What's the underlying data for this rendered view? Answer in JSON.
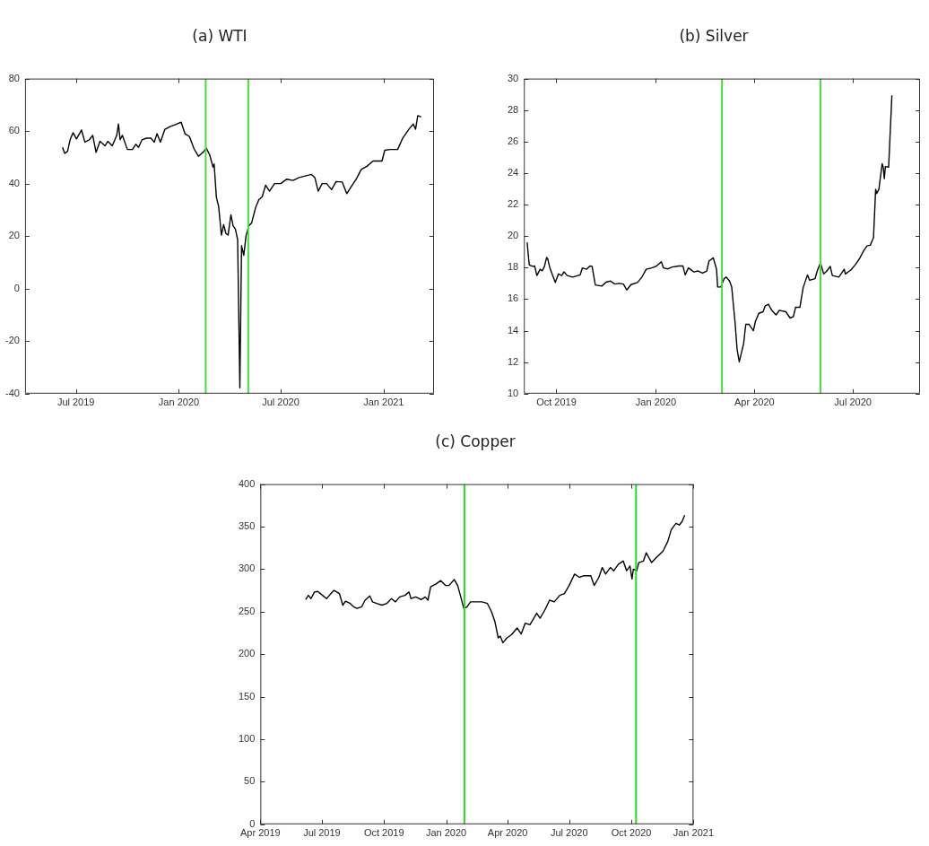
{
  "chart_data": [
    {
      "type": "line",
      "title": "(a) WTI",
      "grid": false,
      "legend": false,
      "marker": "none",
      "line_style": "solid",
      "xlim": [
        "2019-04-01",
        "2021-04-01"
      ],
      "xticks": [
        {
          "value": "2019-07-01",
          "label": "Jul 2019"
        },
        {
          "value": "2020-01-01",
          "label": "Jan 2020"
        },
        {
          "value": "2020-07-01",
          "label": "Jul 2020"
        },
        {
          "value": "2021-01-01",
          "label": "Jan 2021"
        }
      ],
      "ylim": [
        -40,
        80
      ],
      "yticks": [
        -40,
        -20,
        0,
        20,
        40,
        60,
        80
      ],
      "ref_lines": [
        {
          "axis": "x",
          "value": "2020-02-18",
          "color": "#44dd44"
        },
        {
          "axis": "x",
          "value": "2020-05-04",
          "color": "#44dd44"
        }
      ],
      "series": [
        {
          "color": "#000000",
          "x": [
            "2019-06-07",
            "2019-06-11",
            "2019-06-16",
            "2019-06-21",
            "2019-06-26",
            "2019-07-02",
            "2019-07-11",
            "2019-07-17",
            "2019-07-25",
            "2019-07-31",
            "2019-08-06",
            "2019-08-13",
            "2019-08-22",
            "2019-08-27",
            "2019-09-04",
            "2019-09-12",
            "2019-09-15",
            "2019-09-18",
            "2019-09-22",
            "2019-10-01",
            "2019-10-10",
            "2019-10-16",
            "2019-10-21",
            "2019-10-27",
            "2019-11-04",
            "2019-11-12",
            "2019-11-18",
            "2019-11-23",
            "2019-11-29",
            "2019-12-07",
            "2019-12-18",
            "2019-12-26",
            "2020-01-05",
            "2020-01-12",
            "2020-01-20",
            "2020-01-28",
            "2020-02-05",
            "2020-02-14",
            "2020-02-19",
            "2020-02-25",
            "2020-03-02",
            "2020-03-04",
            "2020-03-08",
            "2020-03-12",
            "2020-03-17",
            "2020-03-21",
            "2020-03-25",
            "2020-03-29",
            "2020-04-03",
            "2020-04-07",
            "2020-04-11",
            "2020-04-15",
            "2020-04-19",
            "2020-04-22",
            "2020-04-26",
            "2020-04-30",
            "2020-05-05",
            "2020-05-10",
            "2020-05-17",
            "2020-05-23",
            "2020-05-29",
            "2020-06-04",
            "2020-06-11",
            "2020-06-20",
            "2020-07-01",
            "2020-07-12",
            "2020-07-23",
            "2020-08-03",
            "2020-08-14",
            "2020-08-25",
            "2020-08-31",
            "2020-09-06",
            "2020-09-13",
            "2020-09-21",
            "2020-09-30",
            "2020-10-08",
            "2020-10-19",
            "2020-10-27",
            "2020-11-04",
            "2020-11-13",
            "2020-11-22",
            "2020-12-02",
            "2020-12-13",
            "2020-12-29",
            "2021-01-03",
            "2021-01-12",
            "2021-01-26",
            "2021-02-04",
            "2021-02-15",
            "2021-02-23",
            "2021-02-27",
            "2021-03-03",
            "2021-03-09"
          ],
          "values": [
            53.8,
            51.5,
            52.3,
            57,
            59.4,
            57,
            60.4,
            55.8,
            56.7,
            58.4,
            51.9,
            56.1,
            54.4,
            56.1,
            54.4,
            58.4,
            62.7,
            56.7,
            58.4,
            53,
            53,
            55,
            53.8,
            56.7,
            57.3,
            57.3,
            55.8,
            59,
            55.8,
            60.7,
            61.9,
            62.5,
            63.4,
            59,
            57.9,
            53.3,
            50.4,
            52.1,
            53.5,
            51,
            46.3,
            47.5,
            34.8,
            31.4,
            20.4,
            24.4,
            21,
            20.4,
            28.1,
            23.9,
            22.7,
            18.7,
            -37.8,
            16.4,
            12.7,
            20.1,
            23.9,
            25,
            30.8,
            33.9,
            35,
            39.4,
            37.1,
            40,
            40,
            41.7,
            41.2,
            42.3,
            42.9,
            43.5,
            42.3,
            37.1,
            40,
            40,
            37.7,
            40.8,
            40.6,
            36.2,
            38.8,
            41.7,
            45.4,
            46.6,
            48.6,
            48.6,
            52.7,
            53,
            53,
            57.3,
            60.7,
            62.7,
            60.7,
            65.9,
            65.4
          ]
        }
      ]
    },
    {
      "type": "line",
      "title": "(b) Silver",
      "grid": false,
      "legend": false,
      "marker": "none",
      "line_style": "solid",
      "xlim": [
        "2019-09-01",
        "2020-09-01"
      ],
      "xticks": [
        {
          "value": "2019-10-01",
          "label": "Oct 2019"
        },
        {
          "value": "2020-01-01",
          "label": "Jan 2020"
        },
        {
          "value": "2020-04-01",
          "label": "Apr 2020"
        },
        {
          "value": "2020-07-01",
          "label": "Jul 2020"
        }
      ],
      "ylim": [
        10,
        30
      ],
      "yticks": [
        10,
        12,
        14,
        16,
        18,
        20,
        22,
        24,
        26,
        28,
        30
      ],
      "ref_lines": [
        {
          "axis": "x",
          "value": "2020-03-02",
          "color": "#44dd44"
        },
        {
          "axis": "x",
          "value": "2020-06-01",
          "color": "#44dd44"
        }
      ],
      "series": [
        {
          "color": "#000000",
          "x": [
            "2019-09-04",
            "2019-09-05",
            "2019-09-06",
            "2019-09-09",
            "2019-09-11",
            "2019-09-13",
            "2019-09-16",
            "2019-09-18",
            "2019-09-20",
            "2019-09-22",
            "2019-09-23",
            "2019-09-25",
            "2019-09-30",
            "2019-10-03",
            "2019-10-06",
            "2019-10-08",
            "2019-10-11",
            "2019-10-16",
            "2019-10-23",
            "2019-10-25",
            "2019-10-29",
            "2019-11-01",
            "2019-11-03",
            "2019-11-06",
            "2019-11-12",
            "2019-11-16",
            "2019-11-20",
            "2019-11-24",
            "2019-11-28",
            "2019-12-02",
            "2019-12-05",
            "2019-12-09",
            "2019-12-15",
            "2019-12-19",
            "2019-12-23",
            "2019-12-28",
            "2020-01-01",
            "2020-01-06",
            "2020-01-08",
            "2020-01-12",
            "2020-01-16",
            "2020-01-22",
            "2020-01-26",
            "2020-01-28",
            "2020-01-31",
            "2020-02-05",
            "2020-02-09",
            "2020-02-13",
            "2020-02-17",
            "2020-02-19",
            "2020-02-23",
            "2020-02-26",
            "2020-02-27",
            "2020-03-01",
            "2020-03-04",
            "2020-03-06",
            "2020-03-09",
            "2020-03-11",
            "2020-03-14",
            "2020-03-16",
            "2020-03-18",
            "2020-03-20",
            "2020-03-22",
            "2020-03-24",
            "2020-03-27",
            "2020-03-31",
            "2020-04-02",
            "2020-04-05",
            "2020-04-09",
            "2020-04-11",
            "2020-04-14",
            "2020-04-17",
            "2020-04-21",
            "2020-04-24",
            "2020-04-30",
            "2020-05-04",
            "2020-05-07",
            "2020-05-09",
            "2020-05-13",
            "2020-05-16",
            "2020-05-20",
            "2020-05-22",
            "2020-05-27",
            "2020-05-29",
            "2020-06-01",
            "2020-06-04",
            "2020-06-07",
            "2020-06-10",
            "2020-06-12",
            "2020-06-18",
            "2020-06-23",
            "2020-06-24",
            "2020-06-29",
            "2020-07-03",
            "2020-07-07",
            "2020-07-11",
            "2020-07-14",
            "2020-07-17",
            "2020-07-20",
            "2020-07-22",
            "2020-07-23",
            "2020-07-25",
            "2020-07-28",
            "2020-07-29",
            "2020-07-30",
            "2020-07-31",
            "2020-08-03",
            "2020-08-06"
          ],
          "values": [
            19.6,
            18.85,
            18.17,
            18.08,
            18.1,
            17.5,
            17.9,
            17.8,
            18.08,
            18.65,
            18.56,
            17.98,
            17.06,
            17.6,
            17.5,
            17.73,
            17.5,
            17.4,
            17.54,
            17.98,
            17.9,
            18.1,
            18.08,
            16.9,
            16.83,
            17.08,
            17.15,
            16.96,
            17,
            16.96,
            16.58,
            16.92,
            17.06,
            17.4,
            17.9,
            17.98,
            18.08,
            18.37,
            17.98,
            17.92,
            18.04,
            18.1,
            18.1,
            17.54,
            17.98,
            17.73,
            17.79,
            17.65,
            17.79,
            18.42,
            18.62,
            17.9,
            16.77,
            16.77,
            17.3,
            17.4,
            17.15,
            16.77,
            14.6,
            12.8,
            12.02,
            12.6,
            13.17,
            14.4,
            14.4,
            14,
            14.6,
            15.1,
            15.2,
            15.58,
            15.67,
            15.29,
            15,
            15.29,
            15.2,
            14.8,
            14.9,
            15.48,
            15.48,
            16.73,
            17.54,
            17.2,
            17.3,
            17.79,
            18.3,
            17.6,
            17.79,
            18.08,
            17.5,
            17.4,
            17.9,
            17.6,
            17.85,
            18.17,
            18.56,
            19.08,
            19.38,
            19.42,
            19.9,
            22.98,
            22.7,
            22.98,
            24.6,
            24.38,
            23.65,
            24.42,
            24.38,
            28.94
          ]
        }
      ]
    },
    {
      "type": "line",
      "title": "(c) Copper",
      "grid": false,
      "legend": false,
      "marker": "none",
      "line_style": "solid",
      "xlim": [
        "2019-04-01",
        "2021-01-01"
      ],
      "xticks": [
        {
          "value": "2019-04-01",
          "label": "Apr 2019"
        },
        {
          "value": "2019-07-01",
          "label": "Jul 2019"
        },
        {
          "value": "2019-10-01",
          "label": "Oct 2019"
        },
        {
          "value": "2020-01-01",
          "label": "Jan 2020"
        },
        {
          "value": "2020-04-01",
          "label": "Apr 2020"
        },
        {
          "value": "2020-07-01",
          "label": "Jul 2020"
        },
        {
          "value": "2020-10-01",
          "label": "Oct 2020"
        },
        {
          "value": "2021-01-01",
          "label": "Jan 2021"
        }
      ],
      "ylim": [
        0,
        400
      ],
      "yticks": [
        0,
        50,
        100,
        150,
        200,
        250,
        300,
        350,
        400
      ],
      "ref_lines": [
        {
          "axis": "x",
          "value": "2020-01-28",
          "color": "#22dd22"
        },
        {
          "axis": "x",
          "value": "2020-10-08",
          "color": "#22dd22"
        }
      ],
      "series": [
        {
          "color": "#000000",
          "x": [
            "2019-06-07",
            "2019-06-11",
            "2019-06-15",
            "2019-06-20",
            "2019-06-25",
            "2019-07-02",
            "2019-07-08",
            "2019-07-13",
            "2019-07-19",
            "2019-07-27",
            "2019-08-01",
            "2019-08-05",
            "2019-08-12",
            "2019-08-17",
            "2019-08-22",
            "2019-08-29",
            "2019-09-03",
            "2019-09-10",
            "2019-09-14",
            "2019-09-20",
            "2019-09-28",
            "2019-10-05",
            "2019-10-12",
            "2019-10-18",
            "2019-10-24",
            "2019-11-01",
            "2019-11-07",
            "2019-11-10",
            "2019-11-17",
            "2019-11-25",
            "2019-12-01",
            "2019-12-05",
            "2019-12-09",
            "2019-12-17",
            "2019-12-24",
            "2019-12-31",
            "2020-01-05",
            "2020-01-13",
            "2020-01-18",
            "2020-01-22",
            "2020-01-27",
            "2020-02-01",
            "2020-02-06",
            "2020-02-13",
            "2020-02-23",
            "2020-03-02",
            "2020-03-08",
            "2020-03-13",
            "2020-03-18",
            "2020-03-21",
            "2020-03-25",
            "2020-03-31",
            "2020-04-07",
            "2020-04-15",
            "2020-04-21",
            "2020-04-27",
            "2020-05-04",
            "2020-05-14",
            "2020-05-19",
            "2020-05-26",
            "2020-06-02",
            "2020-06-09",
            "2020-06-17",
            "2020-06-24",
            "2020-07-01",
            "2020-07-09",
            "2020-07-16",
            "2020-07-23",
            "2020-08-02",
            "2020-08-07",
            "2020-08-14",
            "2020-08-19",
            "2020-08-24",
            "2020-08-31",
            "2020-09-05",
            "2020-09-12",
            "2020-09-19",
            "2020-09-24",
            "2020-09-29",
            "2020-10-02",
            "2020-10-04",
            "2020-10-09",
            "2020-10-12",
            "2020-10-19",
            "2020-10-23",
            "2020-10-31",
            "2020-11-07",
            "2020-11-17",
            "2020-11-24",
            "2020-11-29",
            "2020-12-06",
            "2020-12-11",
            "2020-12-15",
            "2020-12-19"
          ],
          "values": [
            264.2,
            269.2,
            265.4,
            273.1,
            273.8,
            269.2,
            265.4,
            270,
            275,
            271.2,
            257.7,
            262.3,
            259.6,
            255.8,
            253.8,
            255.8,
            263.5,
            268.5,
            261.5,
            259.6,
            257.7,
            259.6,
            265.4,
            261.5,
            267.3,
            269.2,
            273.1,
            265.4,
            267.3,
            264.2,
            267.3,
            263.5,
            279.2,
            282.7,
            286.5,
            280.8,
            280.8,
            287.7,
            280.8,
            269.2,
            253.8,
            255.8,
            261.5,
            261.5,
            261.5,
            259.6,
            250,
            238.5,
            219.2,
            221.2,
            213.5,
            219.2,
            223.1,
            230.8,
            223.8,
            236.5,
            234.6,
            248.1,
            242.3,
            251.9,
            263.5,
            261.5,
            269.2,
            271.2,
            280.8,
            294.2,
            290.4,
            292.3,
            292.3,
            280.8,
            290.4,
            301.9,
            294.2,
            301.9,
            298.1,
            305.8,
            309.6,
            298.1,
            303.8,
            288.5,
            300,
            298.1,
            307.7,
            309.6,
            319.2,
            307.7,
            313.5,
            321.2,
            332.7,
            346.2,
            353.8,
            351.9,
            355.8,
            363.5
          ]
        }
      ]
    }
  ]
}
